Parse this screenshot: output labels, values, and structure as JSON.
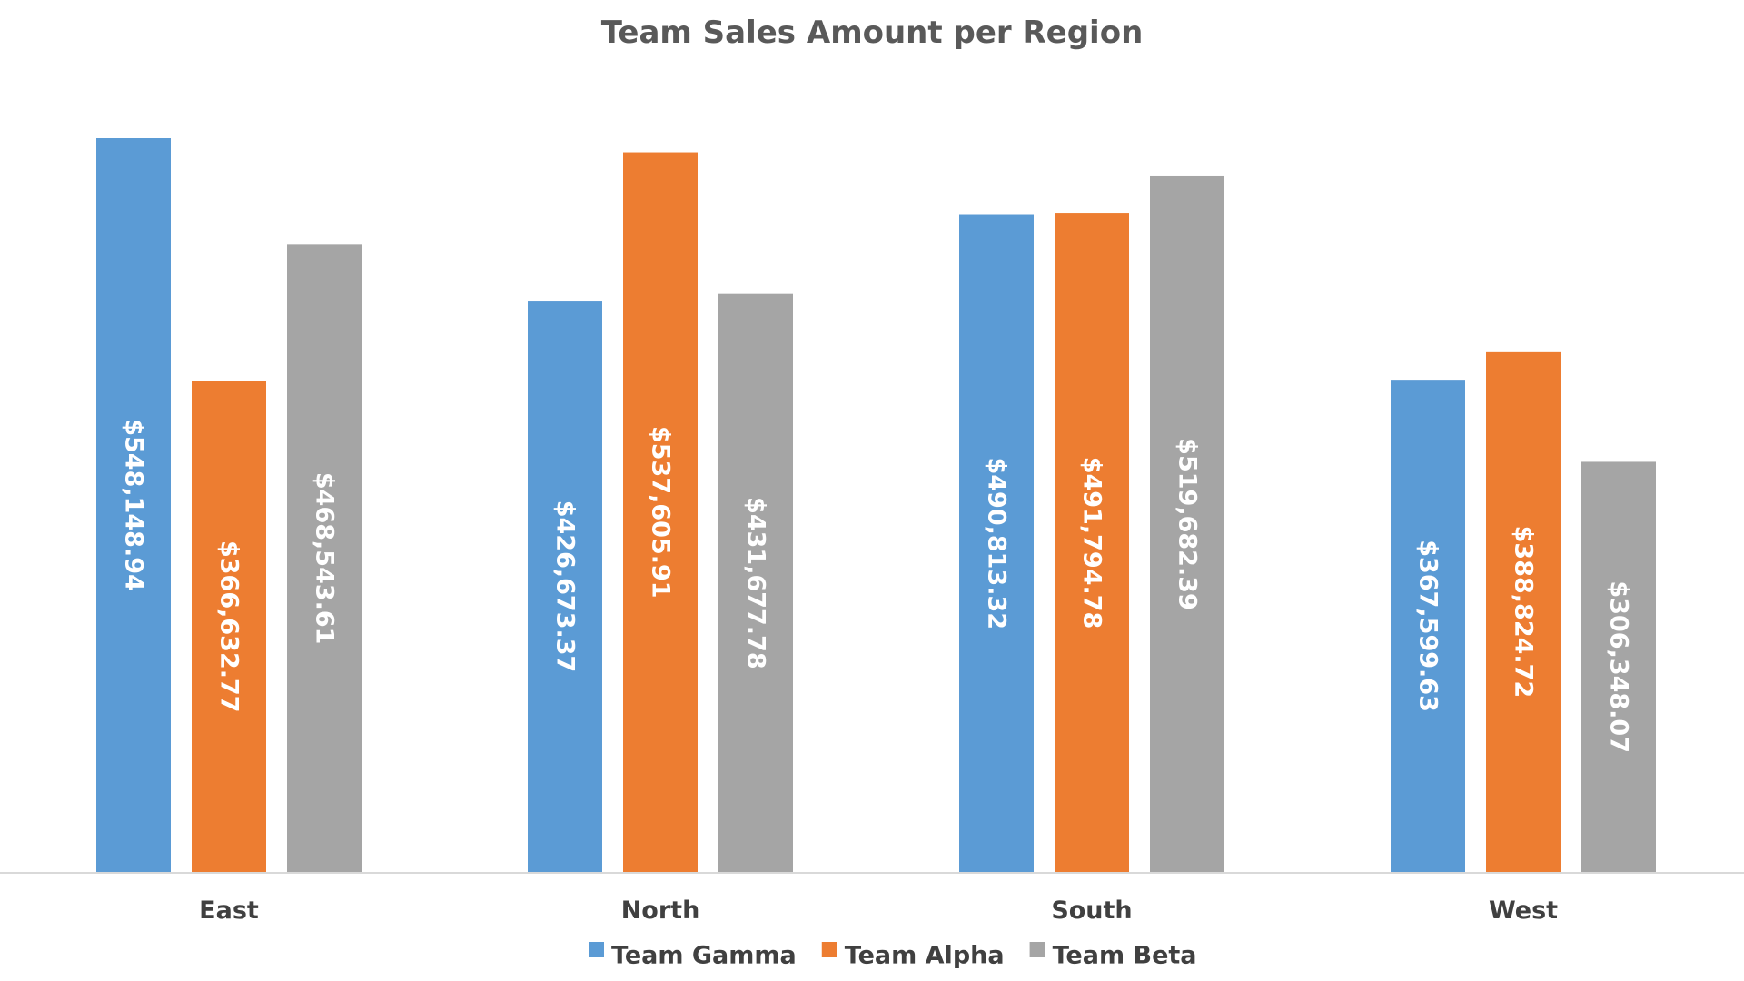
{
  "chart_data": {
    "type": "bar",
    "title": "Team Sales Amount per Region",
    "categories": [
      "East",
      "North",
      "South",
      "West"
    ],
    "series": [
      {
        "name": "Team Gamma",
        "color": "#5B9BD5",
        "values": [
          548148.94,
          426673.37,
          490813.32,
          367599.63
        ],
        "labels": [
          "$548,148.94",
          "$426,673.37",
          "$490,813.32",
          "$367,599.63"
        ]
      },
      {
        "name": "Team Alpha",
        "color": "#ED7D31",
        "values": [
          366632.77,
          537605.91,
          491794.78,
          388824.72
        ],
        "labels": [
          "$366,632.77",
          "$537,605.91",
          "$491,794.78",
          "$388,824.72"
        ]
      },
      {
        "name": "Team Beta",
        "color": "#A5A5A5",
        "values": [
          468543.61,
          431677.78,
          519682.39,
          306348.07
        ],
        "labels": [
          "$468,543.61",
          "$431,677.78",
          "$519,682.39",
          "$306,348.07"
        ]
      }
    ],
    "xlabel": "",
    "ylabel": "",
    "ylim": [
      0,
      548148.94
    ],
    "grid": false,
    "legend": "bottom",
    "data_labels": "inside-rotated"
  }
}
